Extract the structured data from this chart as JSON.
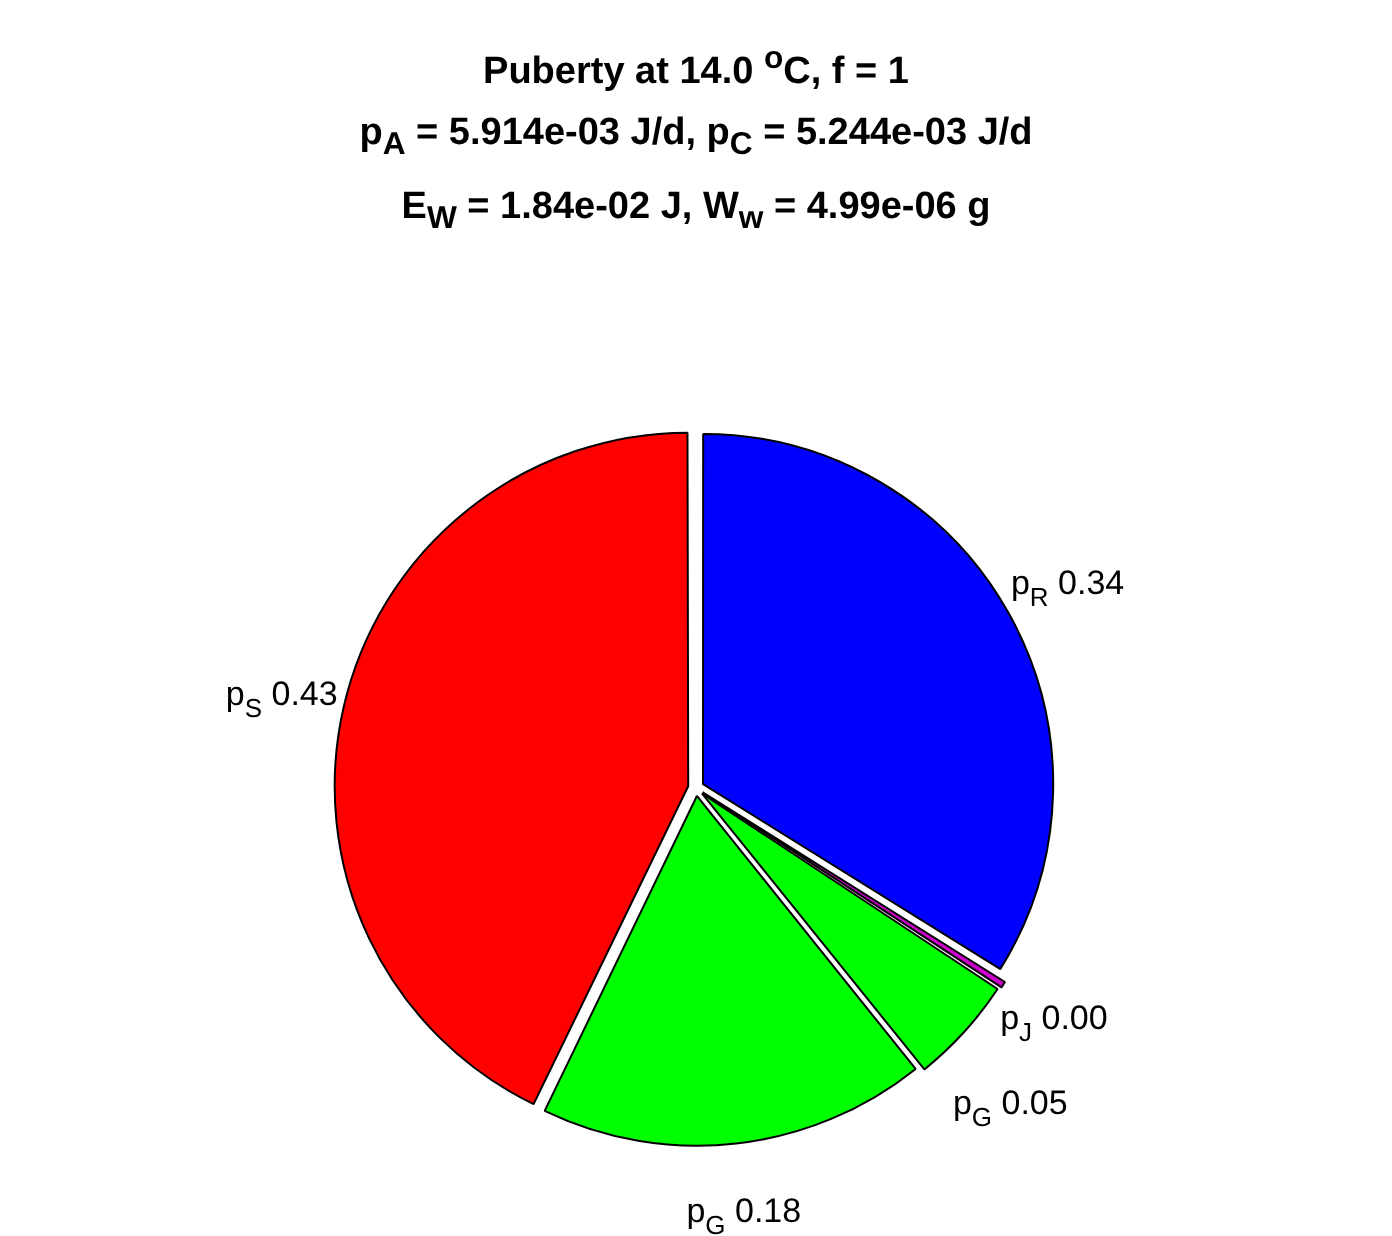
{
  "chart_data": {
    "type": "pie",
    "title": "Puberty at 14.0 $^{o}$C, f = 1",
    "subtitle": "p$_{A}$ = 5.914e-03 J/d,  p$_{C}$ = 5.244e-03 J/d\nE$_{W}$ = 1.84e-02 J, W$_{w}$ = 4.99e-06 g",
    "categories": [
      "p$_{R}$",
      "p$_{J}$",
      "p$_{G}$",
      "p$_{G}$",
      "p$_{S}$"
    ],
    "values": [
      0.34,
      0.004,
      0.05,
      0.18,
      0.43
    ],
    "value_labels": [
      "0.34",
      "0.00",
      "0.05",
      "0.18",
      "0.43"
    ],
    "colors": [
      "#0000ff",
      "#cc00cc",
      "#00ff00",
      "#00ff00",
      "#ff0000"
    ],
    "legend": false
  }
}
